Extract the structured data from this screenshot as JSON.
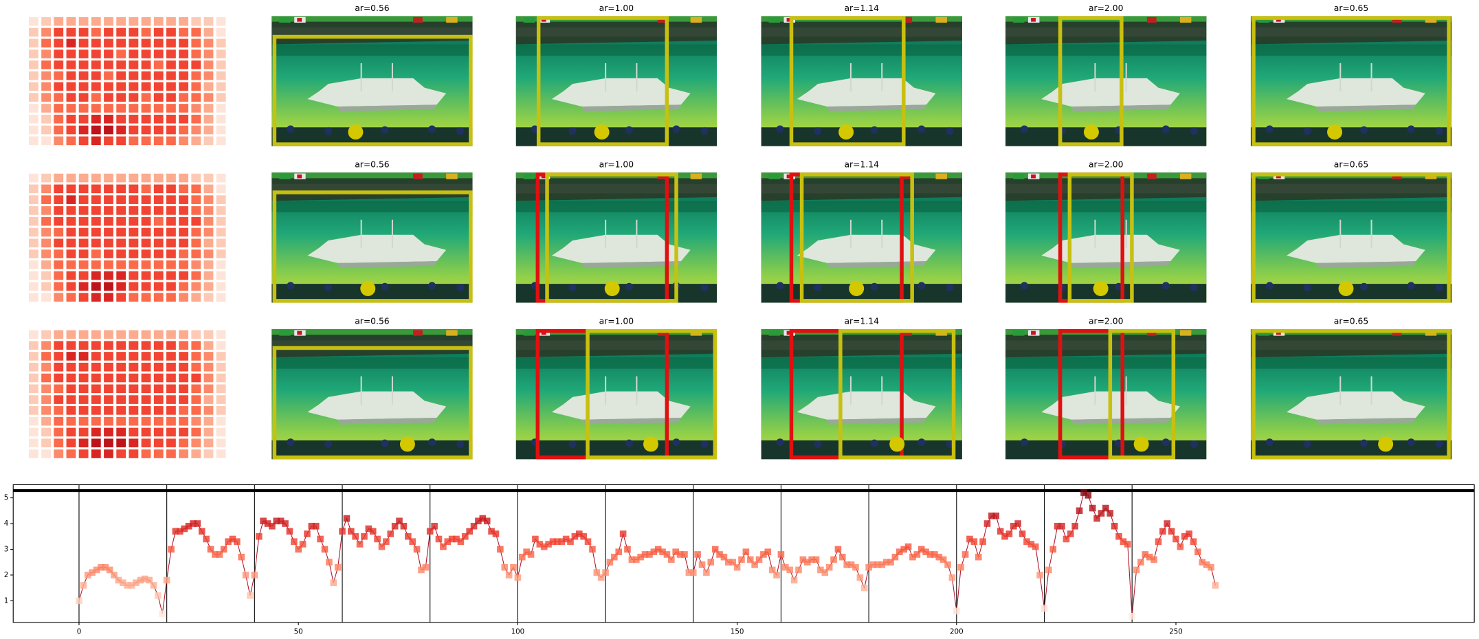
{
  "panel_rows": [
    {
      "heatmap": [
        [
          1,
          2,
          3,
          3,
          3,
          3,
          3,
          3,
          3,
          3,
          3,
          3,
          3,
          2,
          2,
          1
        ],
        [
          2,
          4,
          6,
          6,
          6,
          5,
          6,
          6,
          6,
          5,
          6,
          6,
          5,
          5,
          3,
          1
        ],
        [
          2,
          5,
          6,
          7,
          6,
          6,
          6,
          6,
          6,
          6,
          6,
          6,
          6,
          5,
          4,
          2
        ],
        [
          2,
          4,
          6,
          6,
          6,
          6,
          6,
          5,
          6,
          6,
          6,
          6,
          6,
          5,
          4,
          2
        ],
        [
          2,
          5,
          6,
          6,
          6,
          6,
          6,
          6,
          6,
          6,
          5,
          6,
          6,
          6,
          4,
          2
        ],
        [
          2,
          4,
          5,
          6,
          6,
          6,
          5,
          6,
          6,
          6,
          6,
          6,
          6,
          5,
          4,
          2
        ],
        [
          2,
          4,
          6,
          6,
          6,
          6,
          6,
          6,
          6,
          6,
          6,
          6,
          6,
          5,
          3,
          2
        ],
        [
          2,
          4,
          5,
          6,
          6,
          5,
          6,
          6,
          6,
          5,
          6,
          6,
          5,
          5,
          4,
          2
        ],
        [
          1,
          3,
          5,
          5,
          5,
          5,
          5,
          5,
          5,
          5,
          5,
          5,
          5,
          4,
          3,
          1
        ],
        [
          1,
          2,
          5,
          6,
          6,
          7,
          7,
          6,
          6,
          6,
          6,
          6,
          6,
          5,
          3,
          1
        ],
        [
          1,
          2,
          5,
          6,
          7,
          8,
          8,
          7,
          6,
          6,
          6,
          6,
          5,
          4,
          3,
          1
        ],
        [
          1,
          1,
          4,
          5,
          6,
          7,
          6,
          6,
          5,
          5,
          5,
          5,
          4,
          3,
          2,
          1
        ]
      ],
      "panels": [
        {
          "title": "ar=0.56"
        },
        {
          "title": "ar=1.00"
        },
        {
          "title": "ar=1.14"
        },
        {
          "title": "ar=2.00"
        },
        {
          "title": "ar=0.65"
        }
      ]
    },
    {
      "heatmap": [
        [
          1,
          2,
          3,
          3,
          3,
          3,
          3,
          3,
          3,
          3,
          3,
          3,
          3,
          2,
          2,
          1
        ],
        [
          2,
          4,
          6,
          6,
          6,
          6,
          6,
          6,
          6,
          5,
          6,
          6,
          5,
          5,
          3,
          1
        ],
        [
          2,
          5,
          6,
          7,
          6,
          6,
          6,
          6,
          6,
          6,
          6,
          6,
          6,
          5,
          4,
          2
        ],
        [
          2,
          4,
          6,
          6,
          6,
          6,
          6,
          6,
          6,
          6,
          6,
          6,
          6,
          5,
          4,
          2
        ],
        [
          2,
          5,
          6,
          6,
          6,
          6,
          6,
          6,
          6,
          6,
          5,
          6,
          6,
          6,
          4,
          2
        ],
        [
          2,
          4,
          5,
          6,
          6,
          6,
          6,
          6,
          6,
          6,
          6,
          6,
          6,
          5,
          4,
          2
        ],
        [
          2,
          4,
          6,
          6,
          6,
          6,
          6,
          6,
          6,
          6,
          6,
          6,
          6,
          5,
          3,
          2
        ],
        [
          2,
          4,
          5,
          6,
          6,
          5,
          6,
          6,
          6,
          6,
          6,
          6,
          5,
          5,
          4,
          2
        ],
        [
          1,
          3,
          5,
          5,
          5,
          5,
          5,
          5,
          5,
          5,
          5,
          5,
          5,
          4,
          3,
          1
        ],
        [
          1,
          2,
          5,
          6,
          6,
          7,
          7,
          7,
          6,
          6,
          6,
          6,
          6,
          5,
          3,
          1
        ],
        [
          1,
          2,
          5,
          6,
          7,
          8,
          8,
          7,
          6,
          6,
          6,
          6,
          5,
          4,
          3,
          1
        ],
        [
          1,
          1,
          4,
          5,
          6,
          7,
          7,
          6,
          5,
          5,
          5,
          5,
          4,
          3,
          2,
          1
        ]
      ],
      "panels": [
        {
          "title": "ar=0.56"
        },
        {
          "title": "ar=1.00"
        },
        {
          "title": "ar=1.14"
        },
        {
          "title": "ar=2.00"
        },
        {
          "title": "ar=0.65"
        }
      ]
    },
    {
      "heatmap": [
        [
          1,
          2,
          3,
          3,
          3,
          3,
          3,
          3,
          3,
          3,
          3,
          3,
          3,
          2,
          2,
          1
        ],
        [
          2,
          4,
          6,
          6,
          6,
          6,
          6,
          6,
          6,
          6,
          6,
          6,
          5,
          5,
          3,
          1
        ],
        [
          2,
          5,
          6,
          7,
          7,
          6,
          6,
          6,
          6,
          6,
          6,
          6,
          6,
          5,
          4,
          2
        ],
        [
          2,
          4,
          6,
          6,
          6,
          6,
          6,
          6,
          6,
          6,
          6,
          6,
          6,
          5,
          4,
          2
        ],
        [
          2,
          5,
          6,
          6,
          6,
          6,
          6,
          6,
          6,
          6,
          6,
          6,
          6,
          6,
          4,
          2
        ],
        [
          2,
          4,
          5,
          6,
          6,
          6,
          6,
          6,
          6,
          6,
          6,
          6,
          6,
          5,
          4,
          2
        ],
        [
          2,
          4,
          6,
          6,
          6,
          6,
          6,
          6,
          6,
          6,
          6,
          6,
          6,
          5,
          3,
          2
        ],
        [
          2,
          4,
          5,
          6,
          6,
          6,
          6,
          6,
          6,
          6,
          6,
          6,
          5,
          5,
          4,
          2
        ],
        [
          1,
          3,
          5,
          5,
          5,
          5,
          5,
          5,
          5,
          5,
          5,
          5,
          5,
          4,
          3,
          1
        ],
        [
          1,
          2,
          5,
          6,
          6,
          7,
          7,
          7,
          6,
          6,
          6,
          6,
          6,
          5,
          3,
          1
        ],
        [
          1,
          2,
          5,
          6,
          7,
          8,
          8,
          8,
          7,
          6,
          6,
          6,
          5,
          4,
          3,
          1
        ],
        [
          1,
          1,
          4,
          5,
          6,
          7,
          7,
          6,
          6,
          5,
          5,
          5,
          4,
          3,
          2,
          1
        ]
      ],
      "panels": [
        {
          "title": "ar=0.56"
        },
        {
          "title": "ar=1.00"
        },
        {
          "title": "ar=1.14"
        },
        {
          "title": "ar=2.00"
        },
        {
          "title": "ar=0.65"
        }
      ]
    }
  ],
  "chart_data": {
    "type": "line",
    "colormap": "Reds",
    "line_color": "#b2182b",
    "xlim": [
      -15,
      318
    ],
    "ylim": [
      0.16,
      5.51
    ],
    "xticks": [
      0,
      50,
      100,
      150,
      200,
      250
    ],
    "yticks": [
      1,
      2,
      3,
      4,
      5
    ],
    "vlines": [
      0,
      20,
      40,
      60,
      80,
      100,
      120,
      140,
      160,
      180,
      200,
      220,
      240
    ],
    "hline": 5.28,
    "x": [
      0,
      1,
      2,
      3,
      4,
      5,
      6,
      7,
      8,
      9,
      10,
      11,
      12,
      13,
      14,
      15,
      16,
      17,
      18,
      19,
      20,
      21,
      22,
      23,
      24,
      25,
      26,
      27,
      28,
      29,
      30,
      31,
      32,
      33,
      34,
      35,
      36,
      37,
      38,
      39,
      40,
      41,
      42,
      43,
      44,
      45,
      46,
      47,
      48,
      49,
      50,
      51,
      52,
      53,
      54,
      55,
      56,
      57,
      58,
      59,
      60,
      61,
      62,
      63,
      64,
      65,
      66,
      67,
      68,
      69,
      70,
      71,
      72,
      73,
      74,
      75,
      76,
      77,
      78,
      79,
      80,
      81,
      82,
      83,
      84,
      85,
      86,
      87,
      88,
      89,
      90,
      91,
      92,
      93,
      94,
      95,
      96,
      97,
      98,
      99,
      100,
      101,
      102,
      103,
      104,
      105,
      106,
      107,
      108,
      109,
      110,
      111,
      112,
      113,
      114,
      115,
      116,
      117,
      118,
      119,
      120,
      121,
      122,
      123,
      124,
      125,
      126,
      127,
      128,
      129,
      130,
      131,
      132,
      133,
      134,
      135,
      136,
      137,
      138,
      139,
      140,
      141,
      142,
      143,
      144,
      145,
      146,
      147,
      148,
      149,
      150,
      151,
      152,
      153,
      154,
      155,
      156,
      157,
      158,
      159,
      160,
      161,
      162,
      163,
      164,
      165,
      166,
      167,
      168,
      169,
      170,
      171,
      172,
      173,
      174,
      175,
      176,
      177,
      178,
      179,
      180,
      181,
      182,
      183,
      184,
      185,
      186,
      187,
      188,
      189,
      190,
      191,
      192,
      193,
      194,
      195,
      196,
      197,
      198,
      199,
      200,
      201,
      202,
      203,
      204,
      205,
      206,
      207,
      208,
      209,
      210,
      211,
      212,
      213,
      214,
      215,
      216,
      217,
      218,
      219,
      220,
      221,
      222,
      223,
      224,
      225,
      226,
      227,
      228,
      229,
      230,
      231,
      232,
      233,
      234,
      235,
      236,
      237,
      238,
      239,
      240,
      241,
      242,
      243,
      244,
      245,
      246,
      247,
      248,
      249,
      250,
      251,
      252,
      253,
      254,
      255,
      256,
      257,
      258,
      259
    ],
    "values": [
      1.0,
      1.6,
      2.0,
      2.1,
      2.2,
      2.3,
      2.3,
      2.2,
      2.0,
      1.8,
      1.7,
      1.6,
      1.6,
      1.7,
      1.8,
      1.85,
      1.8,
      1.6,
      1.2,
      0.5,
      1.8,
      3.0,
      3.7,
      3.7,
      3.8,
      3.9,
      4.0,
      4.0,
      3.7,
      3.4,
      3.0,
      2.8,
      2.8,
      3.0,
      3.3,
      3.4,
      3.3,
      2.7,
      2.0,
      1.2,
      2.0,
      3.5,
      4.1,
      4.0,
      3.9,
      4.1,
      4.1,
      4.0,
      3.7,
      3.3,
      3.0,
      3.2,
      3.6,
      3.9,
      3.9,
      3.4,
      3.0,
      2.5,
      1.7,
      2.3,
      3.7,
      4.2,
      3.7,
      3.5,
      3.2,
      3.5,
      3.8,
      3.7,
      3.4,
      3.1,
      3.3,
      3.6,
      3.9,
      4.1,
      3.9,
      3.5,
      3.3,
      3.0,
      2.2,
      2.3,
      3.7,
      3.9,
      3.4,
      3.1,
      3.3,
      3.4,
      3.4,
      3.3,
      3.5,
      3.7,
      3.9,
      4.1,
      4.2,
      4.1,
      3.7,
      3.6,
      3.0,
      2.3,
      2.0,
      2.3,
      1.9,
      2.7,
      2.9,
      2.8,
      3.4,
      3.2,
      3.1,
      3.2,
      3.3,
      3.3,
      3.3,
      3.4,
      3.3,
      3.5,
      3.6,
      3.5,
      3.3,
      3.0,
      2.1,
      1.9,
      2.1,
      2.5,
      2.7,
      2.9,
      3.6,
      3.0,
      2.6,
      2.6,
      2.7,
      2.8,
      2.8,
      2.9,
      3.0,
      2.9,
      2.8,
      2.6,
      2.9,
      2.8,
      2.8,
      2.1,
      2.1,
      2.8,
      2.4,
      2.1,
      2.5,
      3.0,
      2.8,
      2.7,
      2.5,
      2.5,
      2.3,
      2.6,
      2.9,
      2.6,
      2.4,
      2.6,
      2.8,
      2.9,
      2.2,
      2.0,
      2.8,
      2.3,
      2.2,
      1.8,
      2.2,
      2.6,
      2.5,
      2.6,
      2.6,
      2.2,
      2.1,
      2.3,
      2.6,
      3.0,
      2.7,
      2.4,
      2.4,
      2.3,
      1.9,
      1.5,
      2.3,
      2.4,
      2.4,
      2.4,
      2.5,
      2.5,
      2.7,
      2.9,
      3.0,
      3.1,
      2.7,
      2.8,
      3.0,
      2.9,
      2.8,
      2.8,
      2.7,
      2.6,
      2.4,
      1.9,
      0.6,
      2.3,
      2.8,
      3.4,
      3.3,
      2.7,
      3.3,
      4.0,
      4.3,
      4.3,
      3.7,
      3.5,
      3.6,
      3.9,
      4.0,
      3.6,
      3.3,
      3.2,
      3.1,
      2.0,
      0.7,
      2.2,
      3.0,
      3.9,
      3.9,
      3.4,
      3.6,
      3.9,
      4.5,
      5.2,
      5.1,
      4.6,
      4.2,
      4.4,
      4.6,
      4.4,
      3.9,
      3.5,
      3.3,
      3.2,
      0.4,
      2.2,
      2.5,
      2.8,
      2.7,
      2.6,
      3.3,
      3.7,
      4.0,
      3.7,
      3.4,
      3.1,
      3.5,
      3.6,
      3.3,
      2.9,
      2.5,
      2.4,
      2.3,
      1.6
    ]
  }
}
